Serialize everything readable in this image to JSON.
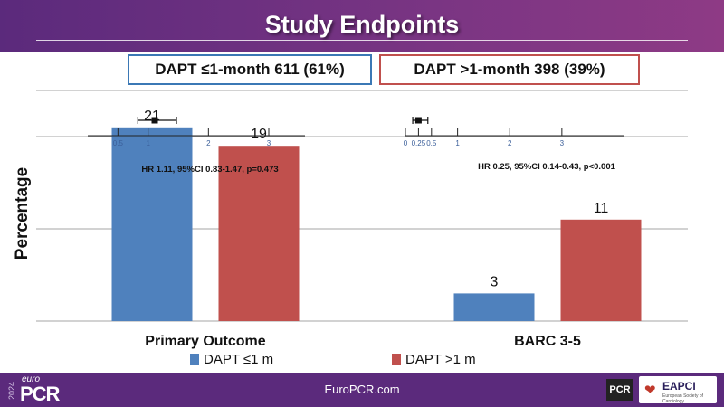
{
  "title": "Study Endpoints",
  "arms": [
    {
      "label": "DAPT ≤1-month 611 (61%)",
      "color": "#3b78b5"
    },
    {
      "label": "DAPT >1-month 398 (39%)",
      "color": "#c0504d"
    }
  ],
  "chart_data": {
    "type": "bar",
    "ylabel": "Percentage",
    "categories": [
      "Primary Outcome",
      "BARC 3-5"
    ],
    "series": [
      {
        "name": "DAPT ≤1 m",
        "color": "#4f81bd",
        "values": [
          21,
          3
        ]
      },
      {
        "name": "DAPT >1 m",
        "color": "#c0504d",
        "values": [
          19,
          11
        ]
      }
    ],
    "ylim": [
      0,
      25
    ],
    "grid": true,
    "legend_position": "bottom",
    "hazard_ratios": [
      {
        "text": "HR 1.11, 95%CI 0.83-1.47, p=0.473",
        "hr": 1.11,
        "ci": [
          0.83,
          1.47
        ],
        "axis_min": 0,
        "axis_max": 3.6,
        "ticks": [
          0.5,
          1,
          2,
          3
        ],
        "tick_labels": [
          "0.5",
          "1",
          "2",
          "3"
        ]
      },
      {
        "text": "HR 0.25, 95%CI 0.14-0.43, p<0.001",
        "hr": 0.25,
        "ci": [
          0.14,
          0.43
        ],
        "axis_min": 0,
        "axis_max": 4.2,
        "ticks": [
          0,
          0.25,
          0.5,
          1,
          2,
          3
        ],
        "tick_labels": [
          "0",
          "0.25",
          "0.5",
          "1",
          "2",
          "3"
        ]
      }
    ]
  },
  "footer": {
    "url": "EuroPCR.com",
    "logo_year": "2024",
    "logo_euro": "euro",
    "logo_pcr": "PCR",
    "partner_logo": "PCR",
    "eapci": "EAPCI",
    "eapci_sub": "European Society of Cardiology"
  }
}
